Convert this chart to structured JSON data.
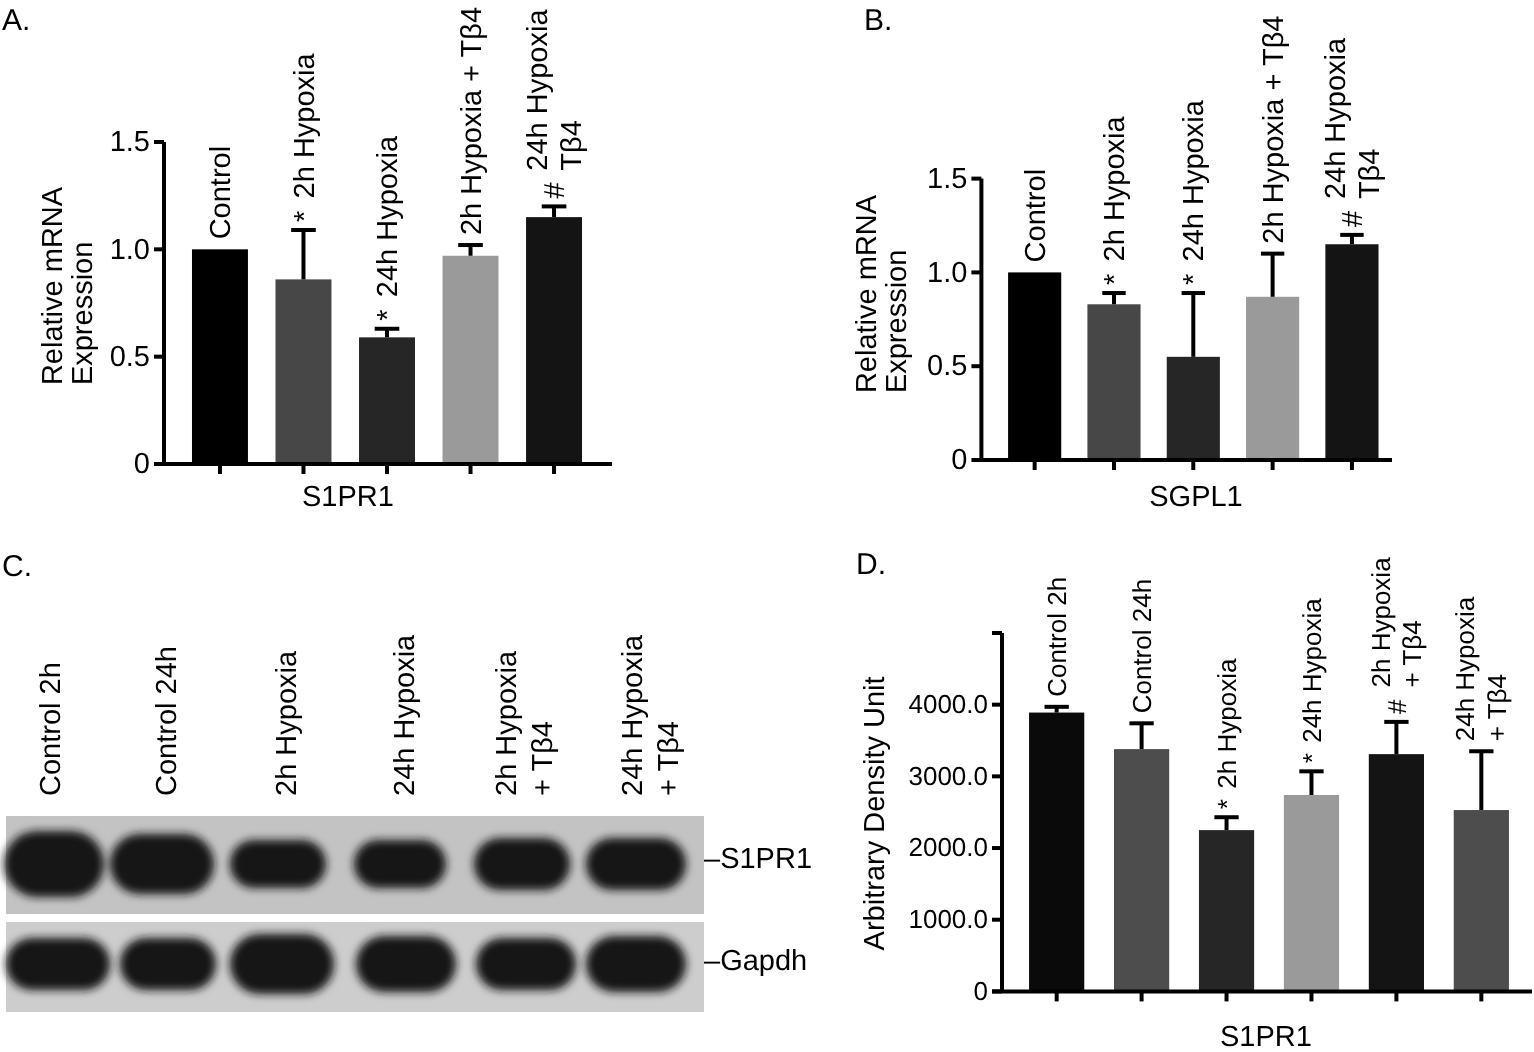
{
  "chart_data": [
    {
      "type": "bar",
      "title": "A.",
      "ylabel": "Relative mRNA Expression",
      "xlabel": "S1PR1",
      "categories": [
        "Control",
        "2h Hypoxia",
        "24h Hypoxia",
        "2h Hypoxia + Tβ4",
        "24h Hypoxia\nTβ4"
      ],
      "values": [
        1.0,
        0.86,
        0.59,
        0.97,
        1.15
      ],
      "errors": [
        null,
        [
          0.86,
          1.09
        ],
        [
          0.59,
          0.63
        ],
        [
          0.97,
          1.02
        ],
        [
          1.15,
          1.2
        ]
      ],
      "colors": [
        "#000000",
        "#474747",
        "#262626",
        "#9a9a9a",
        "#141414"
      ],
      "ylim": [
        0,
        1.5
      ],
      "yticks": [
        0,
        0.5,
        {
          "value": 1,
          "label": "1.0"
        },
        1.5
      ],
      "annotations": [
        {
          "text": "*",
          "x": "2h Hypoxia",
          "y": 1.09
        },
        {
          "text": "*",
          "x": "24h Hypoxia",
          "y": 0.63
        },
        {
          "text": "#",
          "x": "24h Hypoxia\nTβ4",
          "y": 1.2
        }
      ]
    },
    {
      "type": "bar",
      "title": "B.",
      "ylabel": "Relative mRNA Expression",
      "xlabel": "SGPL1",
      "categories": [
        "Control",
        "2h Hypoxia",
        "24h Hypoxia",
        "2h Hypoxia + Tβ4",
        "24h Hypoxia\nTβ4"
      ],
      "values": [
        1.0,
        0.83,
        0.55,
        0.87,
        1.15
      ],
      "errors": [
        null,
        [
          0.83,
          0.89
        ],
        [
          0.55,
          0.89
        ],
        [
          0.87,
          1.1
        ],
        [
          1.15,
          1.2
        ]
      ],
      "colors": [
        "#000000",
        "#474747",
        "#262626",
        "#9a9a9a",
        "#141414"
      ],
      "ylim": [
        0,
        1.5
      ],
      "yticks": [
        0,
        0.5,
        {
          "value": 1,
          "label": "1.0"
        },
        1.5
      ],
      "annotations": [
        {
          "text": "*",
          "x": "2h Hypoxia",
          "y": 0.89
        },
        {
          "text": "*",
          "x": "24h Hypoxia",
          "y": 0.89
        },
        {
          "text": "#",
          "x": "24h Hypoxia\nTβ4",
          "y": 1.2
        }
      ]
    },
    {
      "type": "other",
      "title": "C.",
      "categories": [
        "Control 2h",
        "Control 24h",
        "2h Hypoxia",
        "24h Hypoxia",
        "2h Hypoxia\n+ Tβ4",
        "24h Hypoxia\n+ Tβ4"
      ],
      "annotations": [
        "–S1PR1",
        "–Gapdh"
      ]
    },
    {
      "type": "bar",
      "title": "D.",
      "ylabel": "Arbitrary Density Unit",
      "xlabel": "S1PR1",
      "categories": [
        "Control 2h",
        "Control 24h",
        "2h Hypoxia",
        "24h Hypoxia",
        "2h Hypoxia\n+ Tβ4",
        "24h Hypoxia\n+ Tβ4"
      ],
      "values": [
        3890,
        3380,
        2250,
        2740,
        3310,
        2530
      ],
      "errors": [
        [
          3890,
          3970
        ],
        [
          3380,
          3740
        ],
        [
          2250,
          2430
        ],
        [
          2740,
          3070
        ],
        [
          3310,
          3760
        ],
        [
          2530,
          3350
        ]
      ],
      "colors": [
        "#0a0a0a",
        "#4d4d4d",
        "#262626",
        "#9a9a9a",
        "#141414",
        "#4d4d4d"
      ],
      "ylim": [
        0,
        5000
      ],
      "yticks": [
        0,
        {
          "value": 1000,
          "label": "1000.0"
        },
        {
          "value": 2000,
          "label": "2000.0"
        },
        {
          "value": 3000,
          "label": "3000.0"
        },
        {
          "value": 4000,
          "label": "4000.0"
        },
        {
          "value": 5000,
          "label": null
        }
      ],
      "annotations": [
        {
          "text": "*",
          "x": "2h Hypoxia",
          "y": 2430
        },
        {
          "text": "*",
          "x": "24h Hypoxia",
          "y": 3070
        },
        {
          "text": "#",
          "x": "2h Hypoxia\n+ Tβ4",
          "y": 3760
        }
      ]
    }
  ]
}
